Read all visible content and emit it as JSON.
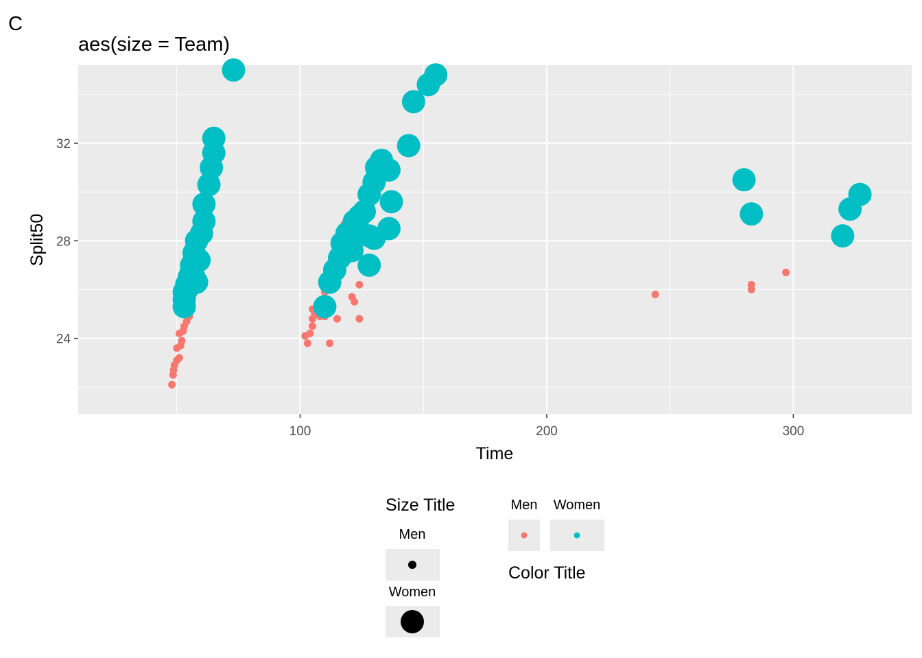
{
  "panel_label": "C",
  "chart_data": {
    "type": "scatter",
    "title": "aes(size = Team)",
    "xlabel": "Time",
    "ylabel": "Split50",
    "xlim": [
      10,
      348
    ],
    "ylim": [
      20.9,
      35.2
    ],
    "x_ticks": [
      100,
      200,
      300
    ],
    "y_ticks": [
      24,
      28,
      32
    ],
    "grid": true,
    "colors": {
      "Men": "#F8766D",
      "Women": "#00BFC4",
      "panel": "#EBEBEB",
      "grid": "#FFFFFF"
    },
    "series": [
      {
        "name": "Men",
        "color": "#F8766D",
        "size": "small",
        "points": [
          [
            48,
            22.1
          ],
          [
            48.5,
            22.5
          ],
          [
            48.7,
            22.7
          ],
          [
            49,
            22.9
          ],
          [
            50,
            23.1
          ],
          [
            51,
            23.2
          ],
          [
            50,
            23.6
          ],
          [
            51.5,
            23.7
          ],
          [
            52,
            23.9
          ],
          [
            51,
            24.2
          ],
          [
            52.5,
            24.3
          ],
          [
            53,
            24.5
          ],
          [
            54,
            24.7
          ],
          [
            55,
            24.9
          ],
          [
            55,
            25.3
          ],
          [
            56,
            25.9
          ],
          [
            57,
            26.7
          ],
          [
            59,
            28.0
          ],
          [
            62,
            28.8
          ],
          [
            102,
            24.1
          ],
          [
            103,
            23.8
          ],
          [
            104,
            24.2
          ],
          [
            105,
            24.5
          ],
          [
            105,
            24.8
          ],
          [
            106,
            25.0
          ],
          [
            105,
            25.2
          ],
          [
            108,
            24.9
          ],
          [
            110,
            24.9
          ],
          [
            112,
            23.8
          ],
          [
            111,
            25.2
          ],
          [
            115,
            24.8
          ],
          [
            110,
            25.9
          ],
          [
            113,
            26.6
          ],
          [
            116,
            27.0
          ],
          [
            118,
            27.6
          ],
          [
            118,
            28.7
          ],
          [
            120,
            29.0
          ],
          [
            121,
            25.7
          ],
          [
            122,
            25.5
          ],
          [
            124,
            26.2
          ],
          [
            124,
            24.8
          ],
          [
            127,
            29.3
          ],
          [
            131,
            28.2
          ],
          [
            244,
            25.8
          ],
          [
            283,
            26.0
          ],
          [
            283,
            26.2
          ],
          [
            297,
            26.7
          ]
        ]
      },
      {
        "name": "Women",
        "color": "#00BFC4",
        "size": "large",
        "points": [
          [
            53,
            25.3
          ],
          [
            53,
            25.6
          ],
          [
            53,
            25.9
          ],
          [
            54,
            26.0
          ],
          [
            54,
            26.2
          ],
          [
            55,
            26.5
          ],
          [
            56,
            26.8
          ],
          [
            57,
            26.5
          ],
          [
            58,
            26.3
          ],
          [
            56,
            27.0
          ],
          [
            57,
            27.5
          ],
          [
            59,
            27.2
          ],
          [
            58,
            28.0
          ],
          [
            60,
            28.3
          ],
          [
            61,
            28.8
          ],
          [
            61,
            29.5
          ],
          [
            63,
            30.3
          ],
          [
            64,
            31.0
          ],
          [
            65,
            31.6
          ],
          [
            65,
            32.2
          ],
          [
            73,
            35.0
          ],
          [
            110,
            25.3
          ],
          [
            112,
            26.3
          ],
          [
            114,
            26.8
          ],
          [
            116,
            27.3
          ],
          [
            117,
            27.9
          ],
          [
            119,
            28.3
          ],
          [
            121,
            27.6
          ],
          [
            123,
            28.4
          ],
          [
            122,
            28.8
          ],
          [
            124,
            29.0
          ],
          [
            126,
            29.2
          ],
          [
            128,
            28.2
          ],
          [
            128,
            27.0
          ],
          [
            130,
            28.1
          ],
          [
            128,
            29.9
          ],
          [
            130,
            30.4
          ],
          [
            131,
            31.0
          ],
          [
            133,
            31.3
          ],
          [
            136,
            30.9
          ],
          [
            137,
            29.6
          ],
          [
            136,
            28.5
          ],
          [
            144,
            31.9
          ],
          [
            146,
            33.7
          ],
          [
            152,
            34.4
          ],
          [
            155,
            34.8
          ],
          [
            280,
            30.5
          ],
          [
            283,
            29.1
          ],
          [
            320,
            28.2
          ],
          [
            323,
            29.3
          ],
          [
            327,
            29.9
          ]
        ]
      }
    ]
  },
  "legends": {
    "size": {
      "title": "Size Title",
      "keys": [
        "Men",
        "Women"
      ]
    },
    "color": {
      "title": "Color Title",
      "keys": [
        "Men",
        "Women"
      ]
    }
  }
}
